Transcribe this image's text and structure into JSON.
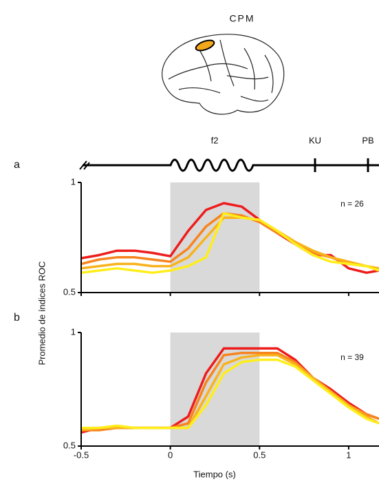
{
  "figure": {
    "area_label": "CPM",
    "timeline_labels": [
      "f2",
      "KU",
      "PB"
    ],
    "ylabel": "Promedio de índices ROC",
    "xlabel": "Tiempo (s)"
  },
  "chart_data": [
    {
      "type": "line",
      "panel_label": "a",
      "annotation": "n = 26",
      "x": [
        -0.5,
        -0.4,
        -0.3,
        -0.2,
        -0.1,
        0,
        0.1,
        0.2,
        0.3,
        0.4,
        0.5,
        0.6,
        0.7,
        0.8,
        0.9,
        1.0,
        1.1,
        1.17
      ],
      "xlim": [
        -0.5,
        1.17
      ],
      "xticks": [
        -0.5,
        0,
        0.5,
        1
      ],
      "ylim": [
        0.5,
        1
      ],
      "yticks": [
        0.5,
        1
      ],
      "highlight": [
        0,
        0.5
      ],
      "series": [
        {
          "color": "#ee1c1c",
          "values": [
            0.656,
            0.67,
            0.69,
            0.69,
            0.68,
            0.665,
            0.78,
            0.875,
            0.906,
            0.89,
            0.83,
            0.77,
            0.72,
            0.67,
            0.67,
            0.61,
            0.59,
            0.6
          ]
        },
        {
          "color": "#f7841e",
          "values": [
            0.63,
            0.65,
            0.66,
            0.66,
            0.65,
            0.64,
            0.7,
            0.8,
            0.86,
            0.85,
            0.82,
            0.77,
            0.73,
            0.68,
            0.66,
            0.63,
            0.62,
            0.6
          ]
        },
        {
          "color": "#f9b21c",
          "values": [
            0.61,
            0.62,
            0.63,
            0.63,
            0.62,
            0.62,
            0.66,
            0.75,
            0.84,
            0.84,
            0.83,
            0.78,
            0.73,
            0.69,
            0.66,
            0.64,
            0.62,
            0.61
          ]
        },
        {
          "color": "#ffee1a",
          "values": [
            0.59,
            0.6,
            0.61,
            0.6,
            0.59,
            0.6,
            0.62,
            0.66,
            0.86,
            0.84,
            0.83,
            0.78,
            0.72,
            0.67,
            0.64,
            0.63,
            0.62,
            0.6
          ]
        }
      ]
    },
    {
      "type": "line",
      "panel_label": "b",
      "annotation": "n = 39",
      "x": [
        -0.5,
        -0.4,
        -0.3,
        -0.2,
        -0.1,
        0,
        0.1,
        0.2,
        0.3,
        0.4,
        0.5,
        0.6,
        0.7,
        0.8,
        0.9,
        1.0,
        1.1,
        1.17
      ],
      "xlim": [
        -0.5,
        1.17
      ],
      "xticks": [
        -0.5,
        0,
        0.5,
        1
      ],
      "ylim": [
        0.5,
        1
      ],
      "yticks": [
        0.5,
        1
      ],
      "highlight": [
        0,
        0.5
      ],
      "series": [
        {
          "color": "#ee1c1c",
          "values": [
            0.56,
            0.58,
            0.58,
            0.58,
            0.58,
            0.58,
            0.63,
            0.82,
            0.93,
            0.93,
            0.93,
            0.93,
            0.88,
            0.8,
            0.75,
            0.69,
            0.64,
            0.62
          ]
        },
        {
          "color": "#f7841e",
          "values": [
            0.57,
            0.57,
            0.58,
            0.58,
            0.58,
            0.58,
            0.6,
            0.78,
            0.9,
            0.91,
            0.91,
            0.91,
            0.87,
            0.8,
            0.74,
            0.68,
            0.64,
            0.62
          ]
        },
        {
          "color": "#f9b21c",
          "values": [
            0.57,
            0.58,
            0.58,
            0.58,
            0.58,
            0.58,
            0.58,
            0.72,
            0.86,
            0.89,
            0.9,
            0.9,
            0.86,
            0.8,
            0.74,
            0.68,
            0.63,
            0.6
          ]
        },
        {
          "color": "#ffee1a",
          "values": [
            0.58,
            0.58,
            0.59,
            0.58,
            0.58,
            0.58,
            0.58,
            0.68,
            0.82,
            0.87,
            0.88,
            0.88,
            0.85,
            0.79,
            0.73,
            0.67,
            0.62,
            0.6
          ]
        }
      ]
    }
  ]
}
